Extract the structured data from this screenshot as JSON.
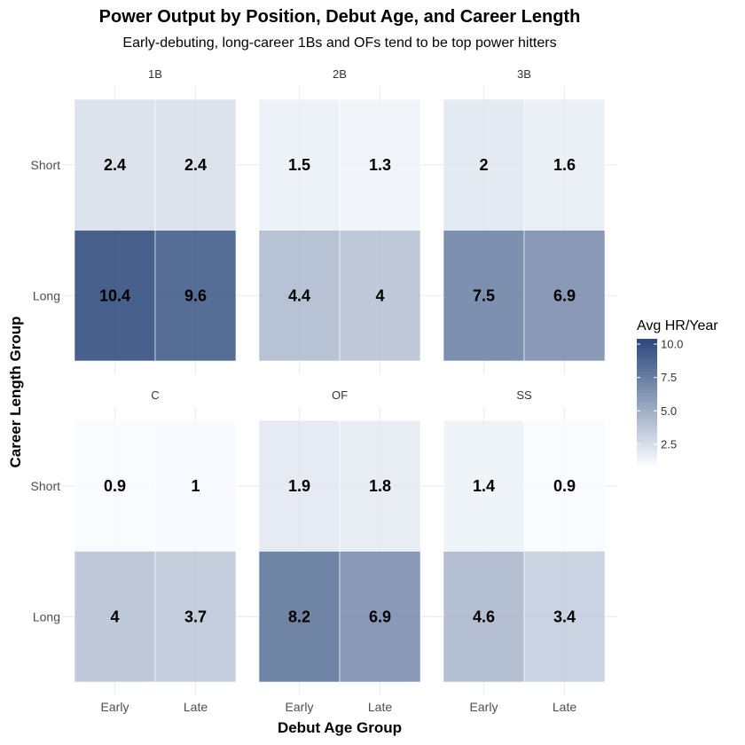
{
  "chart_data": {
    "type": "heatmap",
    "title": "Power Output by Position, Debut Age, and Career Length",
    "subtitle": "Early-debuting, long-career 1Bs and OFs tend to be top power hitters",
    "xlabel": "Debut Age Group",
    "ylabel": "Career Length Group",
    "x_categories": [
      "Early",
      "Late"
    ],
    "y_categories": [
      "Short",
      "Long"
    ],
    "facets": [
      {
        "name": "1B",
        "values": {
          "Short": [
            2.4,
            2.4
          ],
          "Long": [
            10.4,
            9.6
          ]
        }
      },
      {
        "name": "2B",
        "values": {
          "Short": [
            1.5,
            1.3
          ],
          "Long": [
            4.4,
            4
          ]
        }
      },
      {
        "name": "3B",
        "values": {
          "Short": [
            2,
            1.6
          ],
          "Long": [
            7.5,
            6.9
          ]
        }
      },
      {
        "name": "C",
        "values": {
          "Short": [
            0.9,
            1
          ],
          "Long": [
            4,
            3.7
          ]
        }
      },
      {
        "name": "OF",
        "values": {
          "Short": [
            1.9,
            1.8
          ],
          "Long": [
            8.2,
            6.9
          ]
        }
      },
      {
        "name": "SS",
        "values": {
          "Short": [
            1.4,
            0.9
          ],
          "Long": [
            4.6,
            3.4
          ]
        }
      }
    ],
    "legend": {
      "title": "Avg HR/Year",
      "ticks": [
        2.5,
        5.0,
        7.5,
        10.0
      ],
      "tick_labels": [
        "2.5",
        "5.0",
        "7.5",
        "10.0"
      ],
      "range": [
        0.9,
        10.4
      ],
      "low_color": "#f7fbff",
      "high_color": "#1f3d73",
      "placement": "right"
    },
    "grid": true
  }
}
